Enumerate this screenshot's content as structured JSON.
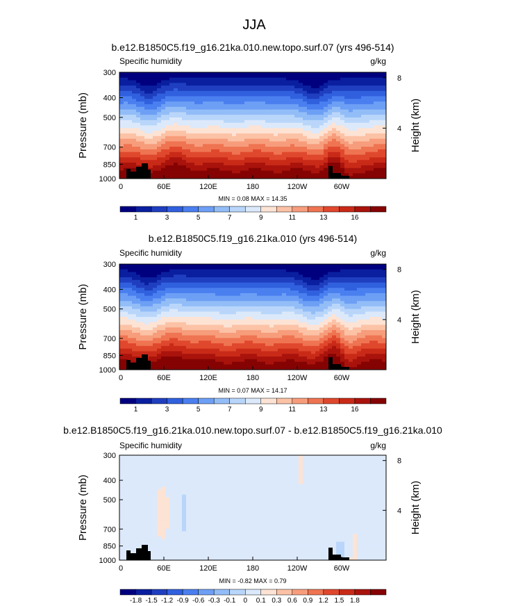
{
  "figure": {
    "title": "JJA"
  },
  "chart_data": [
    {
      "type": "heatmap",
      "title": "b.e12.B1850C5.f19_g16.21ka.010.new.topo.surf.07 (yrs 496-514)",
      "left_label": "Specific humidity",
      "units": "g/kg",
      "xlabel": "",
      "ylabel": "Pressure (mb)",
      "ylabel_right": "Height (km)",
      "xticks": [
        "0",
        "60E",
        "120E",
        "180",
        "120W",
        "60W"
      ],
      "yticks": [
        "300",
        "400",
        "500",
        "700",
        "850",
        "1000"
      ],
      "yticks_right": [
        "8",
        "4"
      ],
      "stats": "MIN =  0.08  MAX =  14.35",
      "min": 0.08,
      "max": 14.35,
      "colorbar_levels": [
        "1",
        "3",
        "5",
        "7",
        "9",
        "11",
        "13",
        "16"
      ],
      "colors": [
        "#00007f",
        "#0a1fa0",
        "#1f3fc0",
        "#3060de",
        "#4a7ff0",
        "#6d9ff5",
        "#93bdf7",
        "#b9d6fa",
        "#dce9fb",
        "#fde3d4",
        "#fcc2a6",
        "#f79d7c",
        "#ef7452",
        "#e0482d",
        "#c92a18",
        "#a9130c",
        "#850303"
      ]
    },
    {
      "type": "heatmap",
      "title": "b.e12.B1850C5.f19_g16.21ka.010 (yrs 496-514)",
      "left_label": "Specific humidity",
      "units": "g/kg",
      "xlabel": "",
      "ylabel": "Pressure (mb)",
      "ylabel_right": "Height (km)",
      "xticks": [
        "0",
        "60E",
        "120E",
        "180",
        "120W",
        "60W"
      ],
      "yticks": [
        "300",
        "400",
        "500",
        "700",
        "850",
        "1000"
      ],
      "yticks_right": [
        "8",
        "4"
      ],
      "stats": "MIN =  0.07  MAX =  14.17",
      "min": 0.07,
      "max": 14.17,
      "colorbar_levels": [
        "1",
        "3",
        "5",
        "7",
        "9",
        "11",
        "13",
        "16"
      ],
      "colors": [
        "#00007f",
        "#0a1fa0",
        "#1f3fc0",
        "#3060de",
        "#4a7ff0",
        "#6d9ff5",
        "#93bdf7",
        "#b9d6fa",
        "#dce9fb",
        "#fde3d4",
        "#fcc2a6",
        "#f79d7c",
        "#ef7452",
        "#e0482d",
        "#c92a18",
        "#a9130c",
        "#850303"
      ]
    },
    {
      "type": "heatmap",
      "title": "b.e12.B1850C5.f19_g16.21ka.010.new.topo.surf.07 - b.e12.B1850C5.f19_g16.21ka.010",
      "left_label": "Specific humidity",
      "units": "g/kg",
      "xlabel": "",
      "ylabel": "Pressure (mb)",
      "ylabel_right": "Height (km)",
      "xticks": [
        "0",
        "60E",
        "120E",
        "180",
        "120W",
        "60W"
      ],
      "yticks": [
        "300",
        "400",
        "500",
        "700",
        "850",
        "1000"
      ],
      "yticks_right": [
        "8",
        "4"
      ],
      "stats": "MIN = -0.82  MAX =  0.79",
      "min": -0.82,
      "max": 0.79,
      "colorbar_levels": [
        "-1.8",
        "-1.5",
        "-1.2",
        "-0.9",
        "-0.6",
        "-0.3",
        "-0.1",
        "0",
        "0.1",
        "0.3",
        "0.6",
        "0.9",
        "1.2",
        "1.5",
        "1.8"
      ],
      "colors": [
        "#00007f",
        "#0a1fa0",
        "#1f3fc0",
        "#3060de",
        "#4a7ff0",
        "#6d9ff5",
        "#93bdf7",
        "#b9d6fa",
        "#dce9fb",
        "#fde3d4",
        "#fcc2a6",
        "#f79d7c",
        "#ef7452",
        "#e0482d",
        "#c92a18",
        "#a9130c",
        "#850303"
      ]
    }
  ]
}
